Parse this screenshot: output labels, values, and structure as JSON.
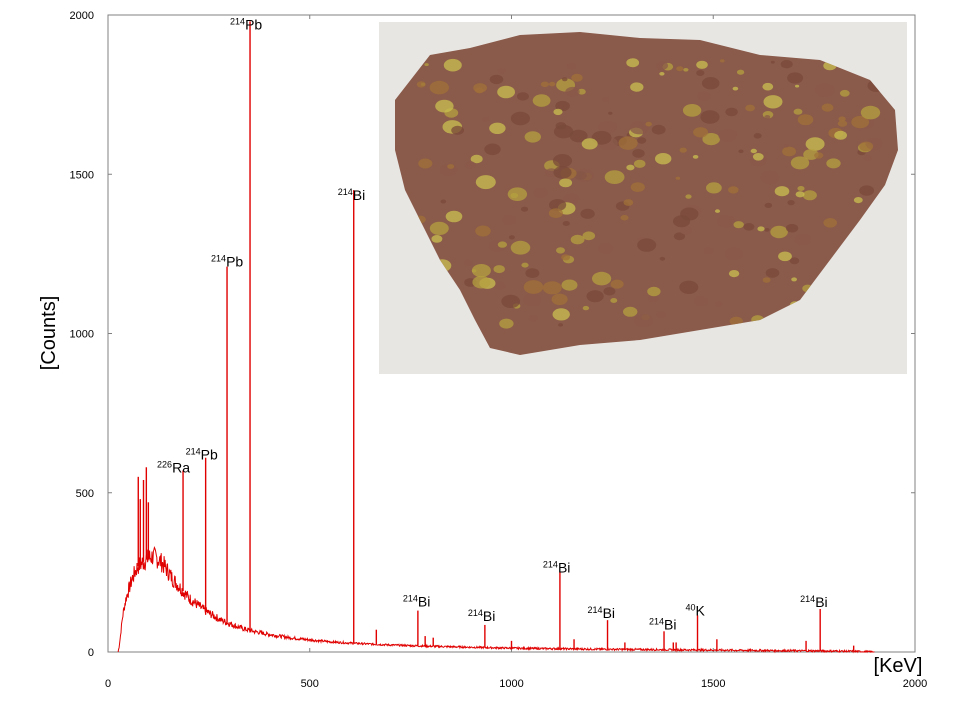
{
  "chart_data": {
    "type": "line",
    "title": "",
    "xlabel": "[KeV]",
    "ylabel": "[Counts]",
    "xlim": [
      0,
      2000
    ],
    "ylim": [
      0,
      2000
    ],
    "x_ticks": [
      0,
      500,
      1000,
      1500,
      2000
    ],
    "y_ticks": [
      0,
      500,
      1000,
      1500,
      2000
    ],
    "grid": false,
    "series_color": "#e00000",
    "continuum": {
      "x": [
        25,
        28,
        30,
        35,
        40,
        45,
        50,
        55,
        60,
        65,
        70,
        75,
        80,
        85,
        90,
        95,
        100,
        110,
        120,
        130,
        140,
        150,
        160,
        170,
        180,
        190,
        200,
        220,
        240,
        260,
        280,
        300,
        330,
        360,
        400,
        450,
        500,
        550,
        600,
        700,
        800,
        900,
        1000,
        1200,
        1400,
        1600,
        1800,
        1850,
        1900
      ],
      "y": [
        0,
        20,
        40,
        100,
        140,
        170,
        190,
        210,
        230,
        245,
        260,
        270,
        275,
        280,
        285,
        290,
        295,
        300,
        295,
        285,
        270,
        250,
        230,
        215,
        200,
        185,
        170,
        150,
        130,
        115,
        100,
        90,
        75,
        65,
        55,
        45,
        38,
        32,
        28,
        22,
        18,
        15,
        12,
        9,
        7,
        5,
        3,
        2,
        0
      ]
    },
    "peaks": [
      {
        "x": 75,
        "y": 550
      },
      {
        "x": 80,
        "y": 480
      },
      {
        "x": 88,
        "y": 540
      },
      {
        "x": 95,
        "y": 580
      },
      {
        "x": 100,
        "y": 470
      },
      {
        "x": 186,
        "y": 570
      },
      {
        "x": 242,
        "y": 610
      },
      {
        "x": 295,
        "y": 1210
      },
      {
        "x": 352,
        "y": 1980
      },
      {
        "x": 609,
        "y": 1450
      },
      {
        "x": 665,
        "y": 70
      },
      {
        "x": 768,
        "y": 130
      },
      {
        "x": 786,
        "y": 50
      },
      {
        "x": 806,
        "y": 45
      },
      {
        "x": 934,
        "y": 85
      },
      {
        "x": 1000,
        "y": 35
      },
      {
        "x": 1120,
        "y": 250
      },
      {
        "x": 1155,
        "y": 40
      },
      {
        "x": 1238,
        "y": 100
      },
      {
        "x": 1281,
        "y": 30
      },
      {
        "x": 1378,
        "y": 65
      },
      {
        "x": 1401,
        "y": 30
      },
      {
        "x": 1408,
        "y": 30
      },
      {
        "x": 1461,
        "y": 115
      },
      {
        "x": 1509,
        "y": 40
      },
      {
        "x": 1730,
        "y": 35
      },
      {
        "x": 1765,
        "y": 135
      },
      {
        "x": 1848,
        "y": 20
      }
    ],
    "annotations": [
      {
        "mass": "214",
        "element": "Pb",
        "x": 352,
        "y": 1980
      },
      {
        "mass": "214",
        "element": "Bi",
        "x": 609,
        "y": 1450
      },
      {
        "mass": "214",
        "element": "Pb",
        "x": 295,
        "y": 1210
      },
      {
        "mass": "214",
        "element": "Pb",
        "x": 242,
        "y": 610
      },
      {
        "mass": "226",
        "element": "Ra",
        "x": 186,
        "y": 570
      },
      {
        "mass": "214",
        "element": "Bi",
        "x": 768,
        "y": 130
      },
      {
        "mass": "214",
        "element": "Bi",
        "x": 934,
        "y": 85
      },
      {
        "mass": "214",
        "element": "Bi",
        "x": 1120,
        "y": 250
      },
      {
        "mass": "214",
        "element": "Bi",
        "x": 1238,
        "y": 100
      },
      {
        "mass": "214",
        "element": "Bi",
        "x": 1378,
        "y": 65
      },
      {
        "mass": "40",
        "element": "K",
        "x": 1461,
        "y": 115
      },
      {
        "mass": "214",
        "element": "Bi",
        "x": 1765,
        "y": 135
      }
    ]
  },
  "photo": {
    "subject": "uranium ore rock sample",
    "background_color": "#e8e6e3",
    "rock_colors": [
      "#8a5a4a",
      "#b4a040",
      "#c9c050",
      "#7a4a3a",
      "#a0703a"
    ]
  }
}
